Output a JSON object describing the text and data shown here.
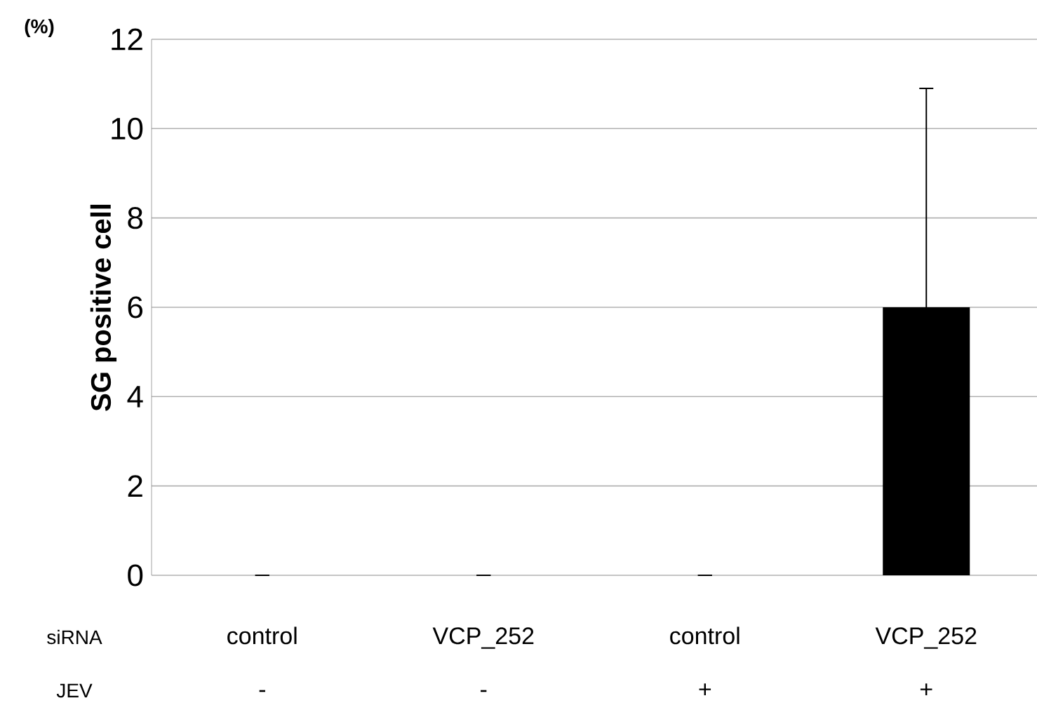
{
  "chart_data": {
    "type": "bar",
    "ylabel": "SG positive cell",
    "categories": [
      "control",
      "VCP_252",
      "control",
      "VCP_252"
    ],
    "values": [
      0,
      0,
      0,
      6
    ],
    "errors": [
      null,
      null,
      null,
      4.9
    ],
    "color": "#000000",
    "ylim": [
      0,
      12
    ],
    "yticks": [
      0,
      2,
      4,
      6,
      8,
      10,
      12
    ],
    "grid": "y",
    "annotations": [
      "(%)",
      "siRNA",
      "JEV",
      "-",
      "-",
      "+",
      "+"
    ]
  }
}
